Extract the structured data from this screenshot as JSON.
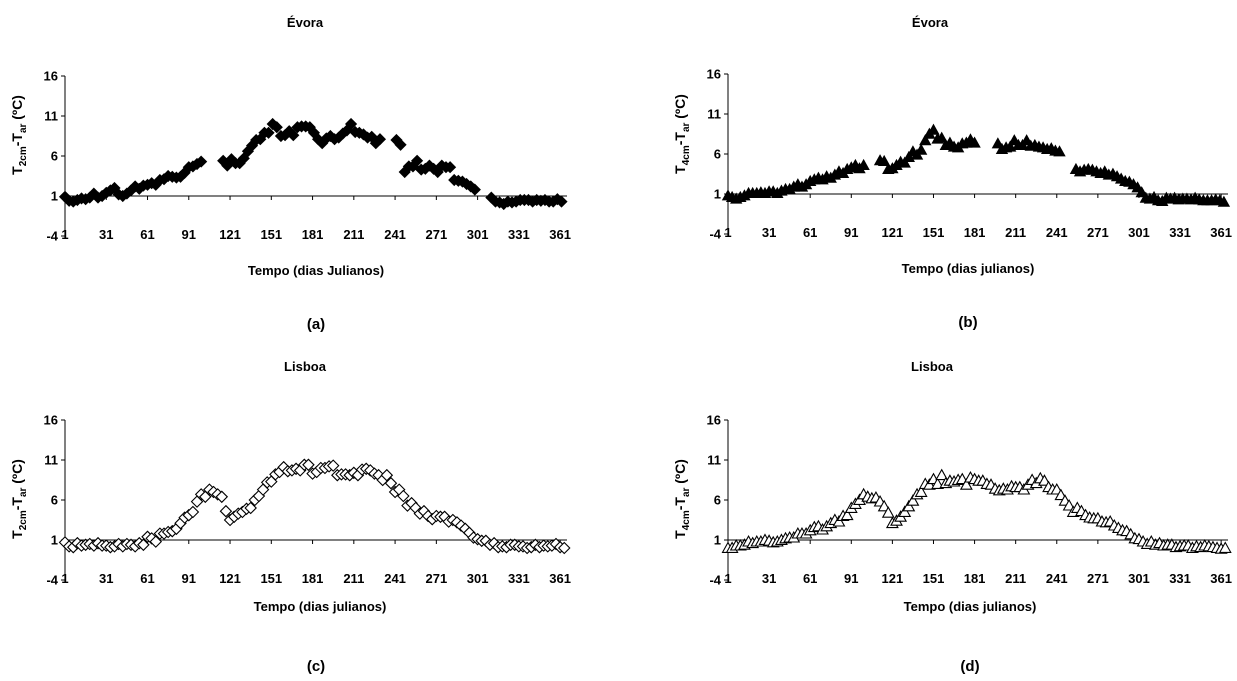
{
  "charts": [
    {
      "title": "Évora",
      "caption": "(a)",
      "ylabel": {
        "base": "T",
        "sub1": "2cm",
        "mid": "-T",
        "sub2": "ar",
        "unit": " (ºC)"
      },
      "xlabel": "Tempo (dias Julianos)"
    },
    {
      "title": "Évora",
      "caption": "(b)",
      "ylabel": {
        "base": "T",
        "sub1": "4cm",
        "mid": "-T",
        "sub2": "ar",
        "unit": " (ºC)"
      },
      "xlabel": "Tempo (dias julianos)"
    },
    {
      "title": "Lisboa",
      "caption": "(c)",
      "ylabel": {
        "base": "T",
        "sub1": "2cm",
        "mid": "-T",
        "sub2": "ar",
        "unit": " (ºC)"
      },
      "xlabel": "Tempo (dias julianos)"
    },
    {
      "title": "Lisboa",
      "caption": "(d)",
      "ylabel": {
        "base": "T",
        "sub1": "4cm",
        "mid": "-T",
        "sub2": "ar",
        "unit": " (ºC)"
      },
      "xlabel": "Tempo (dias julianos)"
    }
  ],
  "chart_data": [
    {
      "type": "scatter",
      "title": "Évora",
      "marker": "diamond-filled",
      "xlabel": "Tempo (dias Julianos)",
      "ylabel": "T2cm-Tar (ºC)",
      "xlim": [
        1,
        366
      ],
      "ylim": [
        -4,
        16
      ],
      "xticks": [
        1,
        31,
        61,
        91,
        121,
        151,
        181,
        211,
        241,
        271,
        301,
        331,
        361
      ],
      "yticks": [
        -4,
        1,
        6,
        11,
        16
      ],
      "x": [
        1,
        4,
        7,
        10,
        13,
        16,
        19,
        22,
        25,
        28,
        31,
        34,
        37,
        40,
        43,
        46,
        49,
        52,
        55,
        58,
        61,
        64,
        67,
        70,
        73,
        76,
        79,
        82,
        85,
        88,
        91,
        94,
        97,
        100,
        116,
        119,
        122,
        125,
        128,
        131,
        134,
        137,
        140,
        143,
        146,
        149,
        152,
        155,
        158,
        161,
        164,
        167,
        170,
        173,
        176,
        179,
        182,
        185,
        188,
        191,
        194,
        197,
        200,
        203,
        206,
        209,
        212,
        215,
        218,
        221,
        224,
        227,
        230,
        242,
        245,
        248,
        251,
        254,
        257,
        260,
        263,
        266,
        269,
        272,
        275,
        278,
        281,
        284,
        287,
        290,
        293,
        296,
        299,
        311,
        314,
        317,
        320,
        323,
        326,
        329,
        332,
        335,
        338,
        341,
        344,
        347,
        350,
        353,
        356,
        359,
        362
      ],
      "y": [
        0.9,
        0.4,
        0.3,
        0.5,
        0.7,
        0.6,
        0.8,
        1.3,
        0.8,
        1.0,
        1.4,
        1.7,
        2.0,
        1.2,
        1.0,
        1.3,
        1.7,
        2.2,
        1.9,
        2.3,
        2.4,
        2.6,
        2.4,
        3.0,
        3.1,
        3.5,
        3.4,
        3.3,
        3.4,
        3.9,
        4.6,
        4.7,
        5.0,
        5.3,
        5.4,
        4.8,
        5.6,
        5.1,
        5.1,
        5.7,
        6.6,
        7.3,
        8.0,
        8.1,
        8.9,
        8.9,
        10.0,
        9.6,
        8.5,
        8.6,
        9.1,
        8.6,
        9.6,
        9.7,
        9.7,
        9.6,
        8.9,
        8.1,
        7.6,
        8.2,
        8.5,
        8.1,
        8.3,
        8.8,
        9.2,
        10.0,
        9.0,
        8.9,
        8.7,
        8.3,
        8.4,
        7.6,
        8.1,
        8.0,
        7.4,
        4.0,
        4.7,
        4.7,
        5.4,
        4.3,
        4.4,
        4.8,
        4.4,
        4.0,
        4.8,
        4.6,
        4.6,
        3.0,
        2.9,
        2.8,
        2.5,
        2.2,
        1.8,
        0.8,
        0.3,
        0.2,
        0.0,
        0.3,
        0.2,
        0.3,
        0.5,
        0.5,
        0.5,
        0.3,
        0.5,
        0.4,
        0.5,
        0.3,
        0.3,
        0.6,
        0.3
      ]
    },
    {
      "type": "scatter",
      "title": "Évora",
      "marker": "triangle-filled",
      "xlabel": "Tempo (dias julianos)",
      "ylabel": "T4cm-Tar (ºC)",
      "xlim": [
        1,
        366
      ],
      "ylim": [
        -4,
        16
      ],
      "xticks": [
        1,
        31,
        61,
        91,
        121,
        151,
        181,
        211,
        241,
        271,
        301,
        331,
        361
      ],
      "yticks": [
        -4,
        1,
        6,
        11,
        16
      ],
      "x": [
        1,
        4,
        7,
        10,
        13,
        16,
        19,
        22,
        25,
        28,
        31,
        34,
        37,
        40,
        43,
        46,
        49,
        52,
        55,
        58,
        61,
        64,
        67,
        70,
        73,
        76,
        79,
        82,
        85,
        88,
        91,
        94,
        97,
        100,
        112,
        115,
        118,
        121,
        124,
        127,
        130,
        133,
        136,
        139,
        142,
        145,
        148,
        151,
        154,
        157,
        160,
        163,
        166,
        169,
        172,
        175,
        178,
        181,
        198,
        201,
        204,
        207,
        210,
        213,
        216,
        219,
        222,
        225,
        228,
        231,
        234,
        237,
        240,
        243,
        255,
        258,
        261,
        264,
        267,
        270,
        273,
        276,
        279,
        282,
        285,
        288,
        291,
        294,
        297,
        300,
        303,
        306,
        309,
        312,
        315,
        318,
        321,
        324,
        327,
        330,
        333,
        336,
        339,
        342,
        345,
        348,
        351,
        354,
        357,
        360,
        363
      ],
      "y": [
        0.8,
        0.6,
        0.4,
        0.6,
        0.8,
        1.1,
        1.1,
        1.1,
        1.2,
        1.1,
        1.3,
        1.3,
        1.1,
        1.4,
        1.6,
        1.6,
        1.9,
        2.2,
        1.9,
        2.2,
        2.6,
        2.8,
        3.0,
        2.8,
        3.2,
        3.0,
        3.4,
        3.8,
        3.6,
        4.1,
        4.3,
        4.6,
        4.2,
        4.6,
        5.2,
        5.1,
        4.1,
        4.2,
        4.6,
        5.0,
        4.9,
        5.6,
        6.3,
        5.9,
        6.5,
        7.7,
        8.5,
        9.0,
        7.9,
        8.0,
        7.1,
        7.4,
        6.9,
        6.8,
        7.3,
        7.4,
        7.8,
        7.4,
        7.3,
        6.6,
        6.8,
        6.9,
        7.7,
        7.1,
        7.1,
        7.7,
        7.0,
        7.1,
        6.9,
        6.8,
        6.6,
        6.7,
        6.4,
        6.3,
        4.1,
        3.8,
        4.0,
        4.1,
        4.0,
        3.8,
        3.6,
        3.8,
        3.4,
        3.5,
        3.2,
        2.9,
        2.6,
        2.5,
        2.2,
        1.8,
        1.2,
        0.5,
        0.4,
        0.6,
        0.2,
        0.1,
        0.5,
        0.4,
        0.5,
        0.3,
        0.4,
        0.4,
        0.3,
        0.5,
        0.3,
        0.2,
        0.2,
        0.2,
        0.3,
        0.2,
        0.0
      ]
    },
    {
      "type": "scatter",
      "title": "Lisboa",
      "marker": "diamond-open",
      "xlabel": "Tempo (dias julianos)",
      "ylabel": "T2cm-Tar (ºC)",
      "xlim": [
        1,
        366
      ],
      "ylim": [
        -4,
        16
      ],
      "xticks": [
        1,
        31,
        61,
        91,
        121,
        151,
        181,
        211,
        241,
        271,
        301,
        331,
        361
      ],
      "yticks": [
        -4,
        1,
        6,
        11,
        16
      ],
      "x": [
        1,
        4,
        7,
        10,
        13,
        16,
        19,
        22,
        25,
        28,
        31,
        34,
        37,
        40,
        43,
        46,
        49,
        52,
        55,
        58,
        61,
        64,
        67,
        70,
        73,
        76,
        79,
        82,
        85,
        88,
        91,
        94,
        97,
        100,
        103,
        106,
        109,
        112,
        115,
        118,
        121,
        124,
        127,
        130,
        133,
        136,
        139,
        142,
        145,
        148,
        151,
        154,
        157,
        160,
        163,
        166,
        169,
        172,
        175,
        178,
        181,
        184,
        187,
        190,
        193,
        196,
        199,
        202,
        205,
        208,
        211,
        214,
        217,
        220,
        223,
        226,
        229,
        232,
        235,
        238,
        241,
        244,
        247,
        250,
        253,
        256,
        259,
        262,
        265,
        268,
        271,
        274,
        277,
        280,
        283,
        286,
        289,
        292,
        295,
        298,
        301,
        304,
        307,
        310,
        313,
        316,
        319,
        322,
        325,
        328,
        331,
        334,
        337,
        340,
        343,
        346,
        349,
        352,
        355,
        358,
        361,
        364
      ],
      "y": [
        0.7,
        0.2,
        0.1,
        0.6,
        0.3,
        0.4,
        0.5,
        0.3,
        0.6,
        0.3,
        0.3,
        0.1,
        0.2,
        0.5,
        0.2,
        0.5,
        0.4,
        0.2,
        0.6,
        0.4,
        1.4,
        1.2,
        0.8,
        1.8,
        1.8,
        2.0,
        2.1,
        2.4,
        3.1,
        3.8,
        4.1,
        4.5,
        5.8,
        6.7,
        6.4,
        7.3,
        7.0,
        6.7,
        6.4,
        4.6,
        3.5,
        3.9,
        4.3,
        4.5,
        4.9,
        5.0,
        6.0,
        6.5,
        7.3,
        8.2,
        8.3,
        9.2,
        9.5,
        10.1,
        9.6,
        9.7,
        9.9,
        9.7,
        10.4,
        10.4,
        9.3,
        9.5,
        10.0,
        10.0,
        10.2,
        10.3,
        9.1,
        9.2,
        9.2,
        9.1,
        9.4,
        9.1,
        9.8,
        9.9,
        9.7,
        9.3,
        9.1,
        8.5,
        9.1,
        8.1,
        7.0,
        7.3,
        6.5,
        5.3,
        5.6,
        5.0,
        4.3,
        4.6,
        4.0,
        3.6,
        4.0,
        3.9,
        3.9,
        3.3,
        3.5,
        3.2,
        2.8,
        2.4,
        1.9,
        1.3,
        1.1,
        0.9,
        0.9,
        0.4,
        0.6,
        0.1,
        0.2,
        0.1,
        0.4,
        0.4,
        0.2,
        0.2,
        0.0,
        0.1,
        0.4,
        0.1,
        0.3,
        0.2,
        0.3,
        0.5,
        0.1,
        0.0
      ]
    },
    {
      "type": "scatter",
      "title": "Lisboa",
      "marker": "triangle-open",
      "xlabel": "Tempo (dias julianos)",
      "ylabel": "T4cm-Tar (ºC)",
      "xlim": [
        1,
        366
      ],
      "ylim": [
        -4,
        16
      ],
      "xticks": [
        1,
        31,
        61,
        91,
        121,
        151,
        181,
        211,
        241,
        271,
        301,
        331,
        361
      ],
      "yticks": [
        -4,
        1,
        6,
        11,
        16
      ],
      "x": [
        1,
        4,
        7,
        10,
        13,
        16,
        19,
        22,
        25,
        28,
        31,
        34,
        37,
        40,
        43,
        46,
        49,
        52,
        55,
        58,
        61,
        64,
        67,
        70,
        73,
        76,
        79,
        82,
        85,
        88,
        91,
        94,
        97,
        100,
        103,
        106,
        109,
        112,
        115,
        118,
        121,
        124,
        127,
        130,
        133,
        136,
        139,
        142,
        145,
        148,
        151,
        154,
        157,
        160,
        163,
        166,
        169,
        172,
        175,
        178,
        181,
        184,
        187,
        190,
        193,
        196,
        199,
        202,
        205,
        208,
        211,
        214,
        217,
        220,
        223,
        226,
        229,
        232,
        235,
        238,
        241,
        244,
        247,
        250,
        253,
        256,
        259,
        262,
        265,
        268,
        271,
        274,
        277,
        280,
        283,
        286,
        289,
        292,
        295,
        298,
        301,
        304,
        307,
        310,
        313,
        316,
        319,
        322,
        325,
        328,
        331,
        334,
        337,
        340,
        343,
        346,
        349,
        352,
        355,
        358,
        361,
        364
      ],
      "y": [
        0.0,
        0.0,
        0.3,
        0.3,
        0.4,
        0.8,
        0.6,
        0.8,
        0.8,
        1.0,
        0.9,
        0.7,
        0.8,
        1.0,
        1.2,
        1.3,
        1.3,
        1.8,
        1.8,
        1.8,
        2.2,
        2.6,
        2.7,
        2.3,
        2.7,
        3.1,
        3.5,
        3.3,
        4.0,
        4.1,
        5.0,
        5.5,
        6.0,
        6.7,
        6.4,
        6.2,
        6.3,
        5.8,
        5.2,
        4.4,
        3.1,
        3.4,
        3.9,
        4.5,
        5.2,
        5.9,
        6.7,
        7.0,
        8.0,
        7.9,
        8.6,
        8.0,
        9.1,
        8.1,
        8.4,
        8.3,
        8.5,
        8.6,
        7.9,
        8.8,
        8.6,
        8.4,
        8.4,
        8.0,
        7.9,
        7.4,
        7.2,
        7.4,
        7.3,
        7.7,
        7.6,
        7.6,
        7.3,
        7.9,
        8.5,
        8.1,
        8.7,
        8.4,
        7.6,
        7.3,
        7.3,
        6.6,
        5.9,
        5.3,
        4.5,
        5.0,
        4.6,
        4.1,
        3.8,
        3.7,
        3.7,
        3.3,
        3.2,
        3.3,
        2.8,
        2.5,
        2.2,
        2.1,
        1.7,
        1.2,
        1.1,
        0.8,
        0.5,
        0.8,
        0.4,
        0.6,
        0.3,
        0.4,
        0.4,
        0.1,
        0.2,
        0.3,
        0.3,
        0.0,
        0.2,
        0.1,
        0.3,
        0.2,
        0.1,
        0.0,
        -0.1,
        0.0
      ]
    }
  ]
}
